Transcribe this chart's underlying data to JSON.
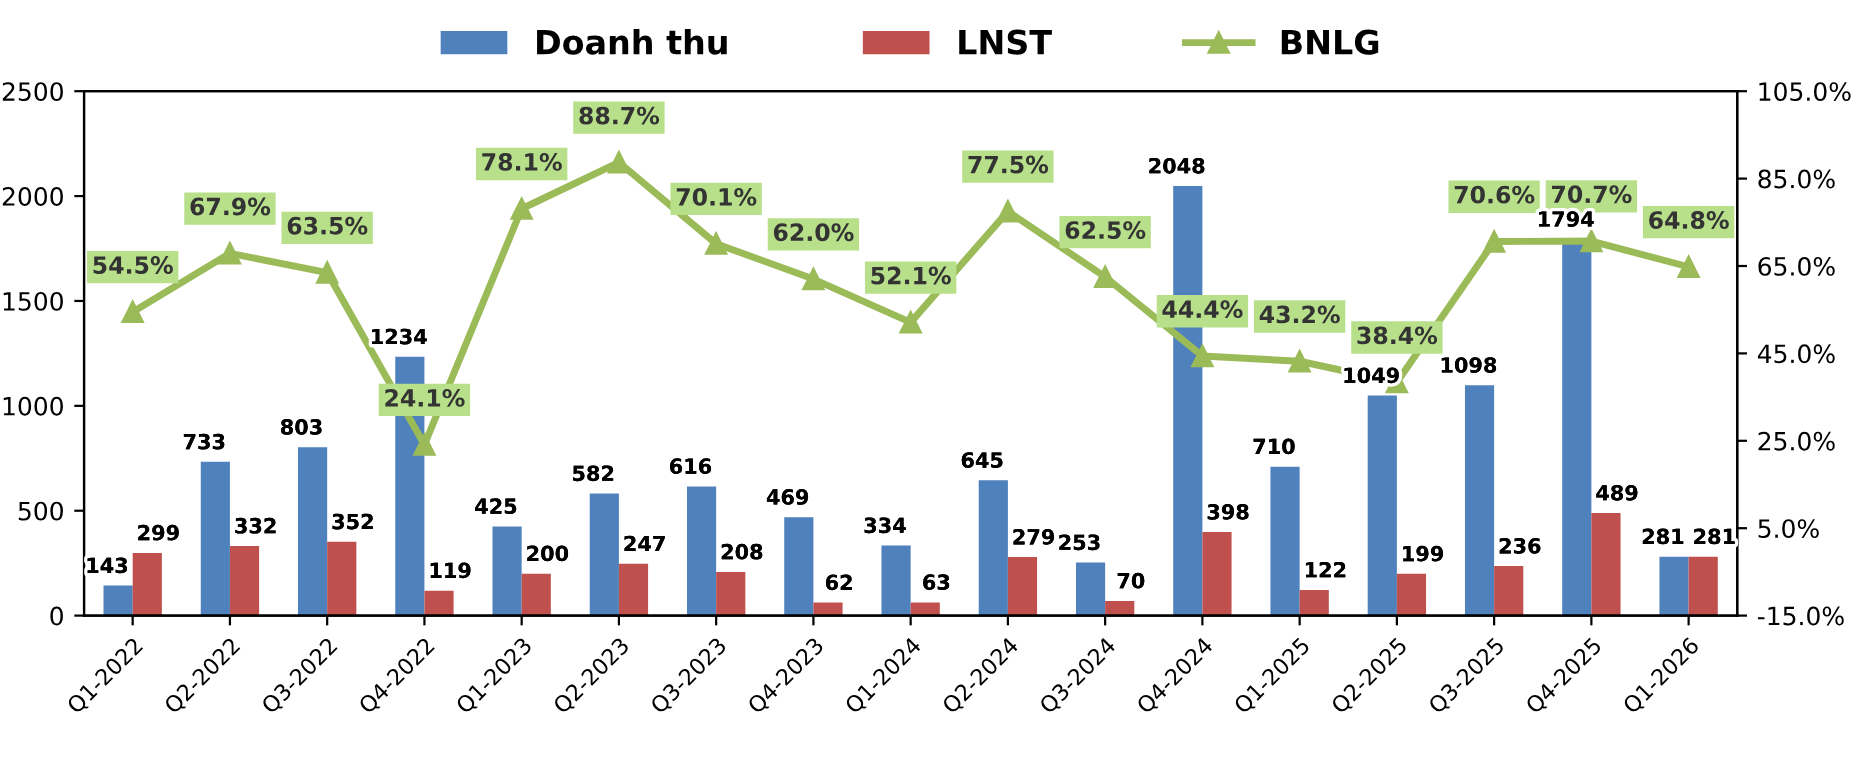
{
  "chart_data": {
    "type": "bar",
    "categories": [
      "Q1-2022",
      "Q2-2022",
      "Q3-2022",
      "Q4-2022",
      "Q1-2023",
      "Q2-2023",
      "Q3-2023",
      "Q4-2023",
      "Q1-2024",
      "Q2-2024",
      "Q3-2024",
      "Q4-2024",
      "Q1-2025",
      "Q2-2025",
      "Q3-2025",
      "Q4-2025",
      "Q1-2026"
    ],
    "series": [
      {
        "name": "Doanh thu",
        "color": "#4f81bd",
        "values": [
          143,
          733,
          803,
          1234,
          425,
          582,
          616,
          469,
          334,
          645,
          253,
          2048,
          710,
          1049,
          1098,
          1794,
          281
        ]
      },
      {
        "name": "LNST",
        "color": "#c0504d",
        "values": [
          299,
          332,
          352,
          119,
          200,
          247,
          208,
          62,
          63,
          279,
          70,
          398,
          122,
          199,
          236,
          489,
          281
        ]
      },
      {
        "name": "BNLG",
        "type": "line",
        "axis": "y2",
        "color": "#9bbb59",
        "marker": "triangle",
        "line_style": "solid",
        "values": [
          54.5,
          67.9,
          63.5,
          24.1,
          78.1,
          88.7,
          70.1,
          62.0,
          52.1,
          77.5,
          62.5,
          44.4,
          43.2,
          38.4,
          70.6,
          70.7,
          64.8
        ],
        "value_labels": [
          "54.5%",
          "67.9%",
          "63.5%",
          "24.1%",
          "78.1%",
          "88.7%",
          "70.1%",
          "62.0%",
          "52.1%",
          "77.5%",
          "62.5%",
          "44.4%",
          "43.2%",
          "38.4%",
          "70.6%",
          "70.7%",
          "64.8%"
        ]
      }
    ],
    "ylim": [
      0,
      2500
    ],
    "yticks": [
      0,
      500,
      1000,
      1500,
      2000,
      2500
    ],
    "y2lim": [
      -15,
      105
    ],
    "y2ticks": [
      {
        "value": -15,
        "label": "-15.0%"
      },
      {
        "value": 5,
        "label": "5.0%"
      },
      {
        "value": 25,
        "label": "25.0%"
      },
      {
        "value": 45,
        "label": "45.0%"
      },
      {
        "value": 65,
        "label": "65.0%"
      },
      {
        "value": 85,
        "label": "85.0%"
      },
      {
        "value": 105,
        "label": "105.0%"
      }
    ],
    "data_labels": true,
    "legend": "top",
    "grid": false
  }
}
